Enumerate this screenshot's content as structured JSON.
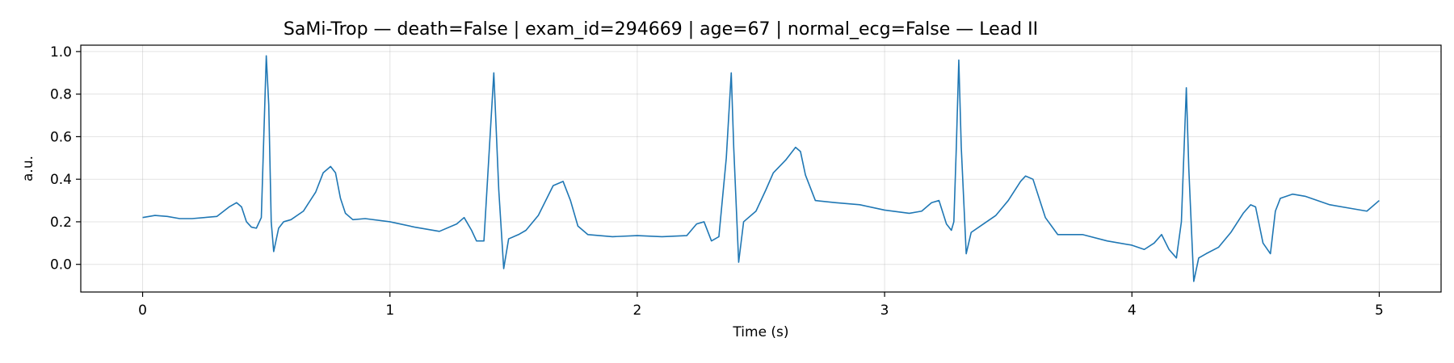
{
  "chart_data": {
    "type": "line",
    "title": "SaMi-Trop — death=False | exam_id=294669 | age=67 | normal_ecg=False — Lead II",
    "xlabel": "Time (s)",
    "ylabel": "a.u.",
    "xlim": [
      -0.25,
      5.25
    ],
    "ylim": [
      -0.13,
      1.03
    ],
    "xticks": [
      0,
      1,
      2,
      3,
      4,
      5
    ],
    "yticks": [
      0.0,
      0.2,
      0.4,
      0.6,
      0.8,
      1.0
    ],
    "xtick_labels": [
      "0",
      "1",
      "2",
      "3",
      "4",
      "5"
    ],
    "ytick_labels": [
      "0.0",
      "0.2",
      "0.4",
      "0.6",
      "0.8",
      "1.0"
    ],
    "grid": true,
    "line_color": "#1f77b4",
    "series": [
      {
        "x": [
          0.0,
          0.05,
          0.1,
          0.15,
          0.2,
          0.25,
          0.3,
          0.35,
          0.38,
          0.4,
          0.42,
          0.44,
          0.46,
          0.48,
          0.5,
          0.51,
          0.52,
          0.53,
          0.55,
          0.57,
          0.6,
          0.65,
          0.7,
          0.73,
          0.76,
          0.78,
          0.8,
          0.82,
          0.85,
          0.9,
          1.0,
          1.1,
          1.2,
          1.27,
          1.3,
          1.33,
          1.35,
          1.38,
          1.42,
          1.44,
          1.46,
          1.48,
          1.52,
          1.55,
          1.6,
          1.66,
          1.7,
          1.73,
          1.76,
          1.8,
          1.9,
          2.0,
          2.1,
          2.2,
          2.24,
          2.27,
          2.3,
          2.33,
          2.36,
          2.38,
          2.39,
          2.41,
          2.43,
          2.48,
          2.52,
          2.55,
          2.6,
          2.64,
          2.66,
          2.68,
          2.72,
          2.8,
          2.9,
          3.0,
          3.1,
          3.15,
          3.19,
          3.22,
          3.25,
          3.27,
          3.28,
          3.29,
          3.3,
          3.31,
          3.33,
          3.35,
          3.4,
          3.45,
          3.5,
          3.55,
          3.57,
          3.6,
          3.65,
          3.7,
          3.8,
          3.9,
          4.0,
          4.05,
          4.09,
          4.12,
          4.15,
          4.18,
          4.2,
          4.22,
          4.23,
          4.25,
          4.27,
          4.3,
          4.35,
          4.4,
          4.45,
          4.48,
          4.5,
          4.53,
          4.56,
          4.58,
          4.6,
          4.65,
          4.7,
          4.8,
          4.9,
          4.95,
          5.0
        ],
        "y": [
          0.22,
          0.23,
          0.225,
          0.215,
          0.215,
          0.22,
          0.225,
          0.27,
          0.29,
          0.27,
          0.2,
          0.175,
          0.17,
          0.22,
          0.98,
          0.75,
          0.2,
          0.06,
          0.17,
          0.2,
          0.21,
          0.25,
          0.34,
          0.43,
          0.46,
          0.43,
          0.31,
          0.24,
          0.21,
          0.215,
          0.2,
          0.175,
          0.155,
          0.19,
          0.22,
          0.16,
          0.11,
          0.11,
          0.9,
          0.35,
          -0.02,
          0.12,
          0.14,
          0.16,
          0.23,
          0.37,
          0.39,
          0.3,
          0.18,
          0.14,
          0.13,
          0.135,
          0.13,
          0.135,
          0.19,
          0.2,
          0.11,
          0.13,
          0.5,
          0.9,
          0.55,
          0.01,
          0.2,
          0.25,
          0.35,
          0.43,
          0.49,
          0.55,
          0.53,
          0.42,
          0.3,
          0.29,
          0.28,
          0.255,
          0.24,
          0.25,
          0.29,
          0.3,
          0.19,
          0.16,
          0.2,
          0.55,
          0.96,
          0.55,
          0.05,
          0.15,
          0.19,
          0.23,
          0.3,
          0.39,
          0.415,
          0.4,
          0.22,
          0.14,
          0.14,
          0.11,
          0.09,
          0.07,
          0.1,
          0.14,
          0.07,
          0.03,
          0.2,
          0.83,
          0.45,
          -0.08,
          0.03,
          0.05,
          0.08,
          0.15,
          0.24,
          0.28,
          0.27,
          0.1,
          0.05,
          0.25,
          0.31,
          0.33,
          0.32,
          0.28,
          0.26,
          0.25,
          0.3
        ]
      }
    ]
  }
}
